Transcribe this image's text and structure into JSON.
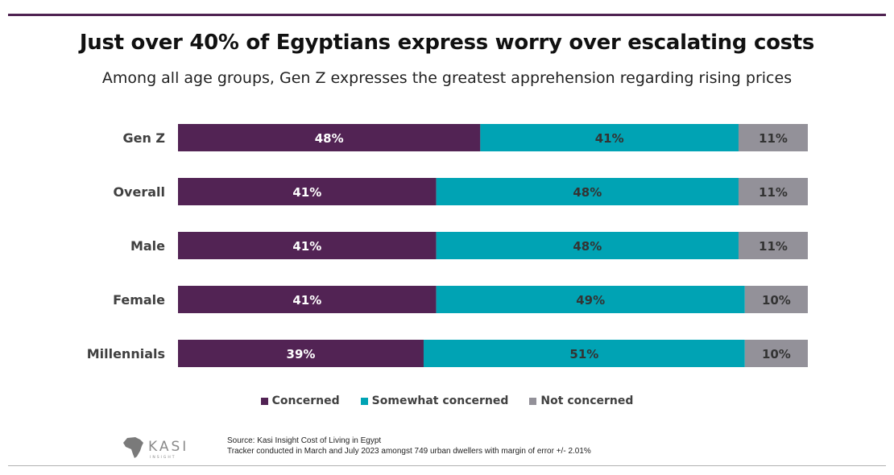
{
  "title": "Just over 40% of Egyptians express worry over escalating costs",
  "subtitle": "Among all age groups, Gen Z expresses the greatest apprehension regarding rising prices",
  "chart_data": {
    "type": "bar",
    "orientation": "horizontal",
    "stacked": true,
    "categories": [
      "Gen Z",
      "Overall",
      "Male",
      "Female",
      "Millennials"
    ],
    "series": [
      {
        "name": "Concerned",
        "values": [
          48,
          41,
          41,
          41,
          39
        ],
        "color": "#522354",
        "label_color": "#ffffff"
      },
      {
        "name": "Somewhat concerned",
        "values": [
          41,
          48,
          48,
          49,
          51
        ],
        "color": "#00a3b4",
        "label_color": "#333333"
      },
      {
        "name": "Not concerned",
        "values": [
          11,
          11,
          11,
          10,
          10
        ],
        "color": "#939199",
        "label_color": "#333333"
      }
    ],
    "value_suffix": "%",
    "xlim": [
      0,
      100
    ],
    "grid": false,
    "legend": "bottom"
  },
  "footer": {
    "logo": "KASI INSIGHT",
    "source_line1": "Source: Kasi Insight Cost of Living in Egypt",
    "source_line2": "Tracker conducted in March and July  2023 amongst 749 urban dwellers with margin of error +/- 2.01%"
  }
}
